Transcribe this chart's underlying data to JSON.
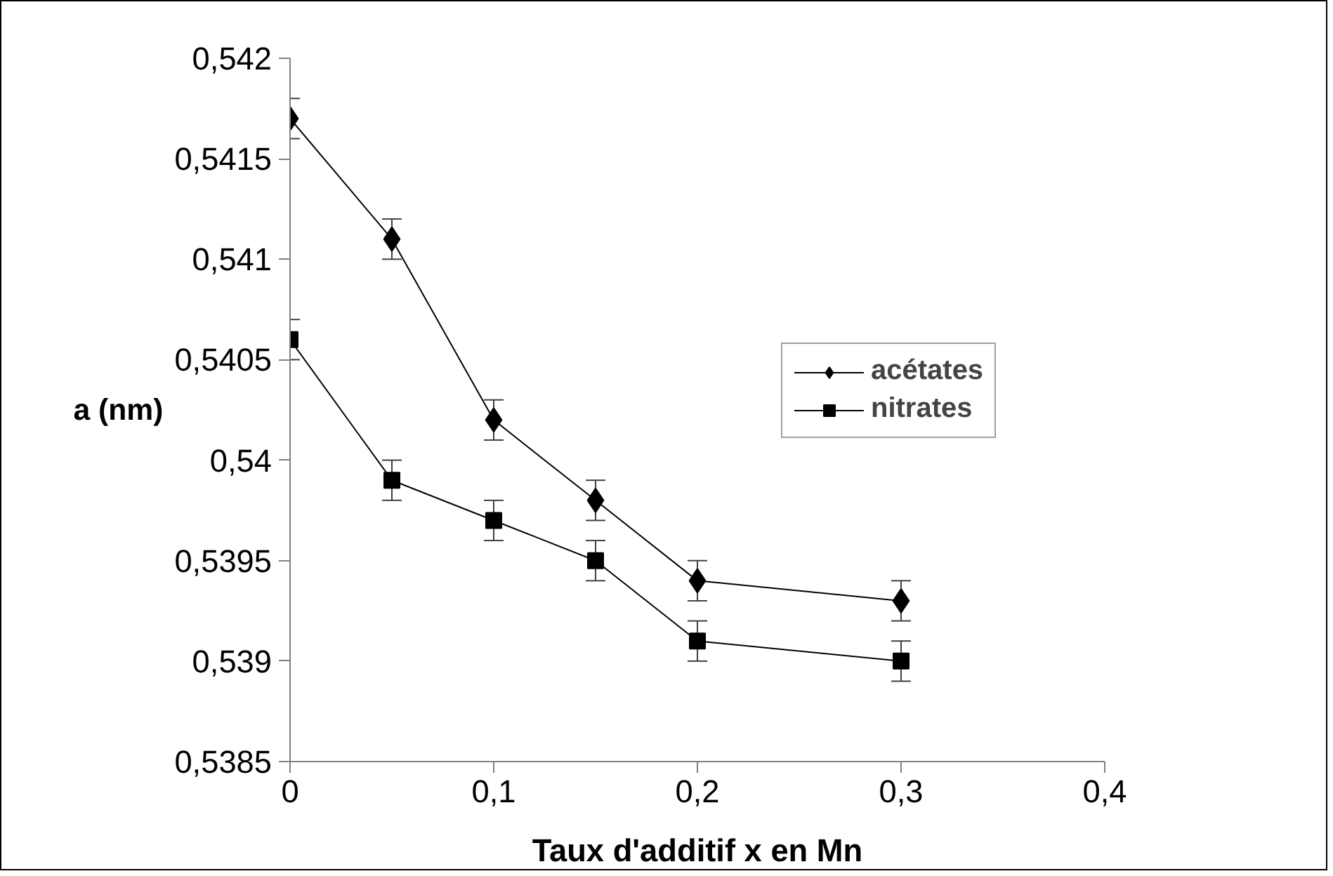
{
  "chart_data": {
    "type": "line",
    "xlabel": "Taux d'additif x en Mn",
    "ylabel": "a (nm)",
    "x": [
      0,
      0.05,
      0.1,
      0.15,
      0.2,
      0.3
    ],
    "series": [
      {
        "name": "acétates",
        "color": "#000000",
        "marker": "diamond",
        "values": [
          0.5417,
          0.5411,
          0.5402,
          0.5398,
          0.5394,
          0.5393
        ],
        "errors": [
          0.0001,
          0.0001,
          0.0001,
          0.0001,
          0.0001,
          0.0001
        ]
      },
      {
        "name": "nitrates",
        "color": "#000000",
        "marker": "square",
        "values": [
          0.5406,
          0.5399,
          0.5397,
          0.5395,
          0.5391,
          0.539
        ],
        "errors": [
          0.0001,
          0.0001,
          0.0001,
          0.0001,
          0.0001,
          0.0001
        ]
      }
    ],
    "xlim": [
      0,
      0.4
    ],
    "ylim": [
      0.5385,
      0.542
    ],
    "xticks": [
      0,
      {
        "value": 0.1,
        "label": "0,1"
      },
      {
        "value": 0.2,
        "label": "0,2"
      },
      {
        "value": 0.3,
        "label": "0,3"
      },
      {
        "value": 0.4,
        "label": "0,4"
      }
    ],
    "yticks": [
      {
        "value": 0.5385,
        "label": "0,5385"
      },
      {
        "value": 0.539,
        "label": "0,539"
      },
      {
        "value": 0.5395,
        "label": "0,5395"
      },
      {
        "value": 0.54,
        "label": "0,54"
      },
      {
        "value": 0.5405,
        "label": "0,5405"
      },
      {
        "value": 0.541,
        "label": "0,541"
      },
      {
        "value": 0.5415,
        "label": "0,5415"
      },
      {
        "value": 0.542,
        "label": "0,542"
      }
    ],
    "grid": false,
    "legend": "right",
    "line_style": "solid"
  }
}
